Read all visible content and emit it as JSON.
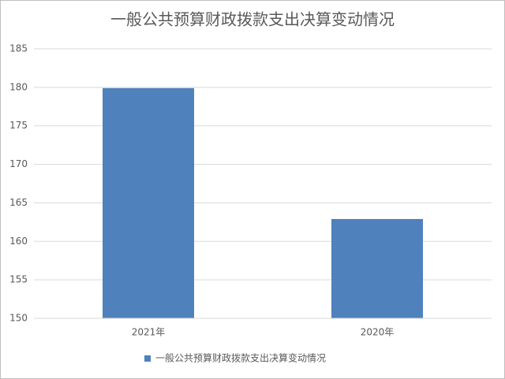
{
  "chart_data": {
    "type": "bar",
    "title": "一般公共预算财政拨款支出决算变动情况",
    "categories": [
      "2021年",
      "2020年"
    ],
    "series": [
      {
        "name": "一般公共预算财政拨款支出决算变动情况",
        "color": "#4f81bd",
        "values": [
          179.9,
          162.9
        ]
      }
    ],
    "ylim": [
      150,
      185
    ],
    "yticks": [
      150,
      155,
      160,
      165,
      170,
      175,
      180,
      185
    ],
    "grid": true,
    "legend": "bottom"
  }
}
